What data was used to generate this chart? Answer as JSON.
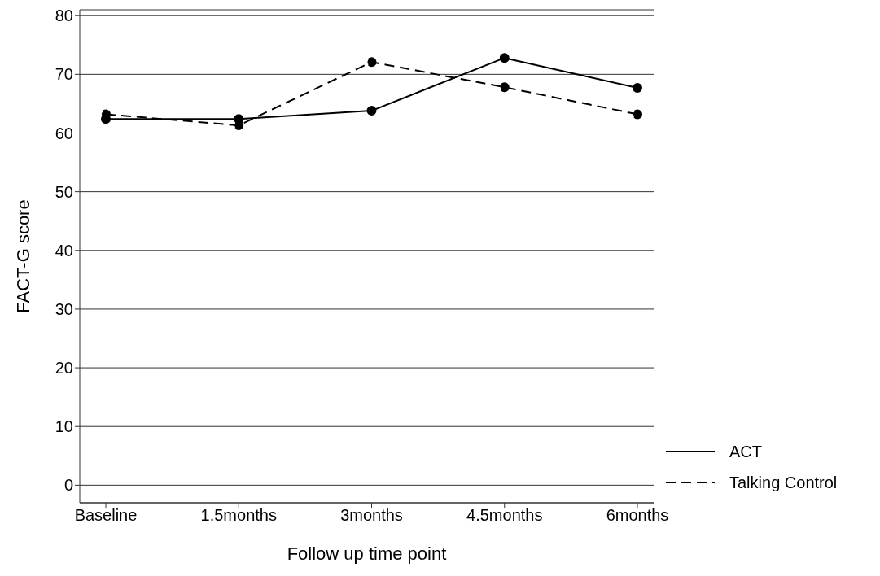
{
  "chart_data": {
    "type": "line",
    "xlabel": "Follow up time point",
    "ylabel": "FACT-G score",
    "categories": [
      "Baseline",
      "1.5months",
      "3months",
      "4.5months",
      "6months"
    ],
    "series": [
      {
        "name": "ACT",
        "color": "#000000",
        "line_style": "solid",
        "values": [
          62.4,
          62.4,
          63.8,
          72.8,
          67.7
        ]
      },
      {
        "name": "Talking Control",
        "color": "#000000",
        "line_style": "dashed",
        "values": [
          63.2,
          61.3,
          72.1,
          67.8,
          63.2
        ]
      }
    ],
    "ylim": [
      -3,
      81
    ],
    "yticks": [
      0,
      10,
      20,
      30,
      40,
      50,
      60,
      70,
      80
    ],
    "grid": "y",
    "legend": "bottom right",
    "marker": "circle"
  }
}
